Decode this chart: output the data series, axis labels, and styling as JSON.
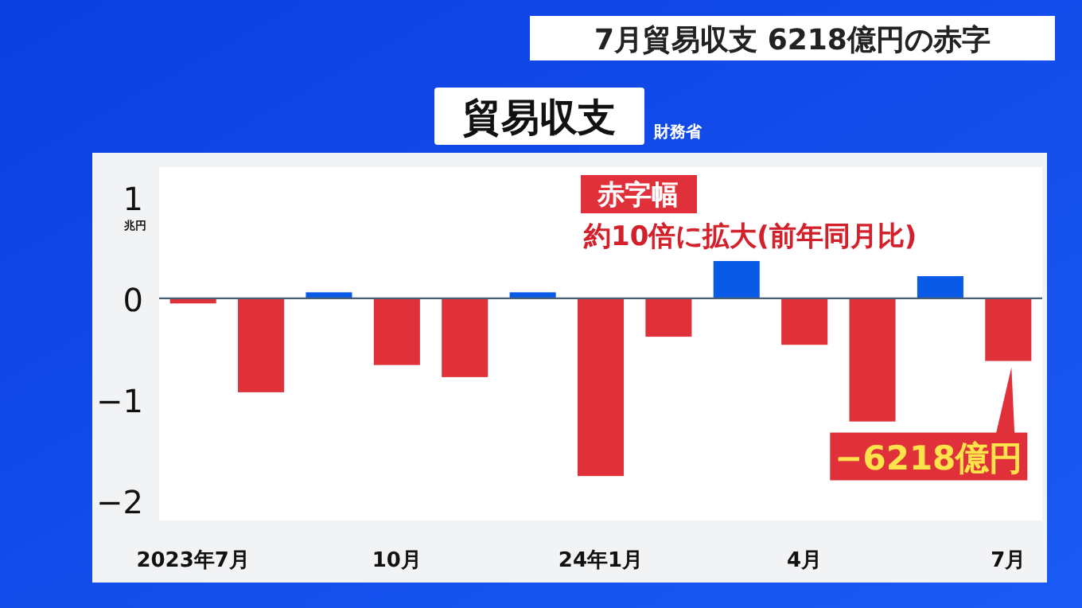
{
  "chart_data": {
    "type": "bar",
    "title": "7月貿易収支 6218億円の赤字",
    "subtitle": "貿易収支",
    "ylabel": "兆円",
    "annotations": [
      "財務省",
      "赤字幅",
      "約10倍に拡大(前年同月比)",
      {
        "text": "−6218億円",
        "x": "7月",
        "y": -0.62
      }
    ],
    "categories": [
      "2023年7月",
      null,
      null,
      "10月",
      null,
      null,
      "24年1月",
      null,
      null,
      "4月",
      null,
      null,
      "7月"
    ],
    "values": [
      -0.05,
      -0.93,
      0.06,
      -0.66,
      -0.78,
      0.06,
      -1.76,
      -0.38,
      0.37,
      -0.46,
      -1.22,
      0.22,
      -0.62
    ],
    "colors": [
      "#e0313a",
      "#e0313a",
      "#0a5ae8",
      "#e0313a",
      "#e0313a",
      "#0a5ae8",
      "#e0313a",
      "#e0313a",
      "#0a5ae8",
      "#e0313a",
      "#e0313a",
      "#0a5ae8",
      "#e0313a"
    ],
    "ylim": [
      -2.2,
      1.3
    ],
    "yticks": [
      1,
      0,
      {
        "value": -1,
        "label": "−1"
      },
      {
        "value": -2,
        "label": "−2"
      }
    ],
    "ref_lines": [
      {
        "axis": "y",
        "value": 0,
        "color": "#4a6070"
      }
    ]
  }
}
